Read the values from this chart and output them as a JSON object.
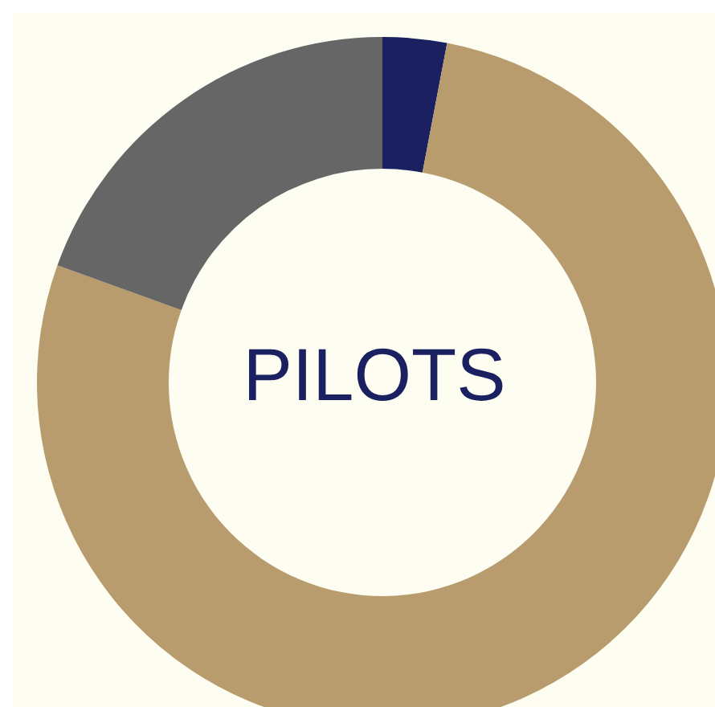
{
  "chart_data": {
    "type": "donut",
    "title": "PILOTS",
    "categories": [
      null,
      null,
      null
    ],
    "values": [
      3,
      77.5,
      19.5
    ],
    "colors": [
      "#1a2060",
      "#b89c6e",
      "#666666"
    ]
  }
}
